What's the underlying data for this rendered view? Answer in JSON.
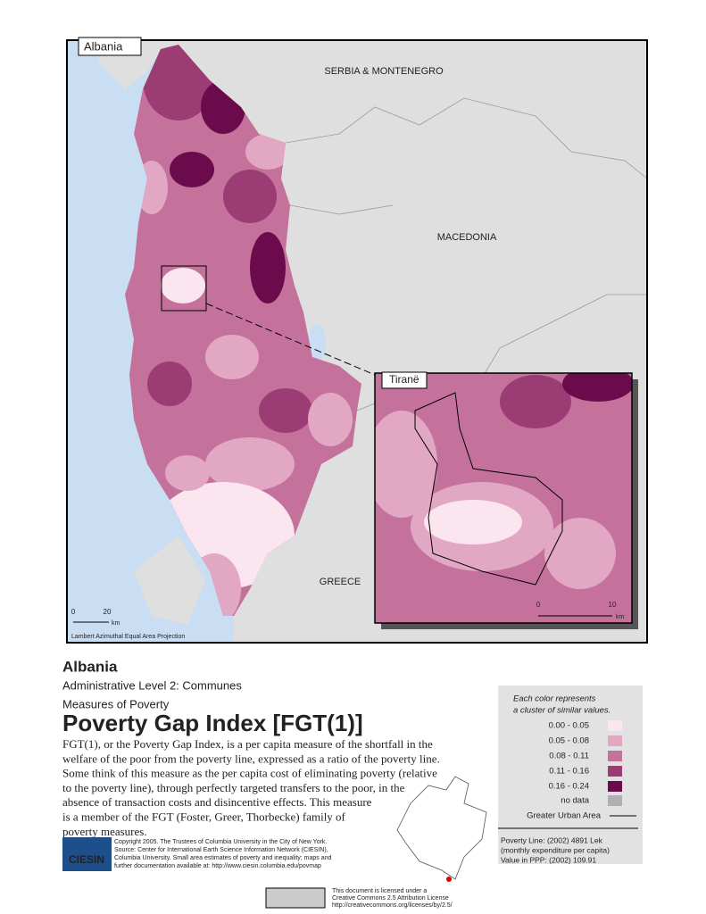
{
  "map": {
    "title": "Albania",
    "inset_title": "Tiranë",
    "labels": [
      "SERBIA & MONTENEGRO",
      "MACEDONIA",
      "GREECE"
    ],
    "scale_bar": {
      "ticks": [
        "0",
        "20"
      ],
      "unit": "km"
    },
    "inset_scale": {
      "ticks": [
        "0",
        "10"
      ],
      "unit": "km"
    },
    "projection": "Lambert Azimuthal Equal Area Projection"
  },
  "header": {
    "title": "Albania",
    "subtitle": "Administrative Level 2: Communes",
    "kicker": "Measures of Poverty",
    "heading": "Poverty Gap Index [FGT(1)]"
  },
  "description": [
    "FGT(1), or the Poverty Gap Index, is a per capita measure of the shortfall in the",
    "welfare of the poor from the poverty line, expressed as a ratio of the poverty line.",
    "Some think of this measure as the per capita cost of eliminating poverty (relative",
    "to the poverty line), through perfectly targeted transfers to the poor, in the",
    "absence of transaction costs and disincentive effects.  This measure",
    "is a member of the FGT (Foster, Greer, Thorbecke) family of",
    "poverty measures."
  ],
  "legend": {
    "caption": [
      "Each color represents",
      "a cluster of similar values."
    ],
    "classes": [
      {
        "label": "0.00 - 0.05",
        "color": "#fbe5ef"
      },
      {
        "label": "0.05 - 0.08",
        "color": "#e2a7c3"
      },
      {
        "label": "0.08 - 0.11",
        "color": "#c4719c"
      },
      {
        "label": "0.11 - 0.16",
        "color": "#9b3c74"
      },
      {
        "label": "0.16 - 0.24",
        "color": "#6c0b4c"
      }
    ],
    "no_data": "no data",
    "urban": "Greater Urban Area"
  },
  "notes": [
    "Poverty Line: (2002) 4891 Lek",
    "(monthly expenditure per capita)",
    "Value in PPP: (2002) 109.91"
  ],
  "logo": "CIESIN",
  "credits": [
    "Copyright 2005. The Trustees of Columbia University in the City of New York.",
    "Source: Center for International Earth Science Information Network (CIESIN),",
    "Columbia University. Small area estimates of poverty and inequality; maps and",
    "further documentation available at: http://www.ciesin.columbia.edu/povmap"
  ],
  "license": [
    "This document is licensed under a",
    "Creative Commons 2.5 Attribution License",
    "http://creativecommons.org/licenses/by/2.5/"
  ]
}
